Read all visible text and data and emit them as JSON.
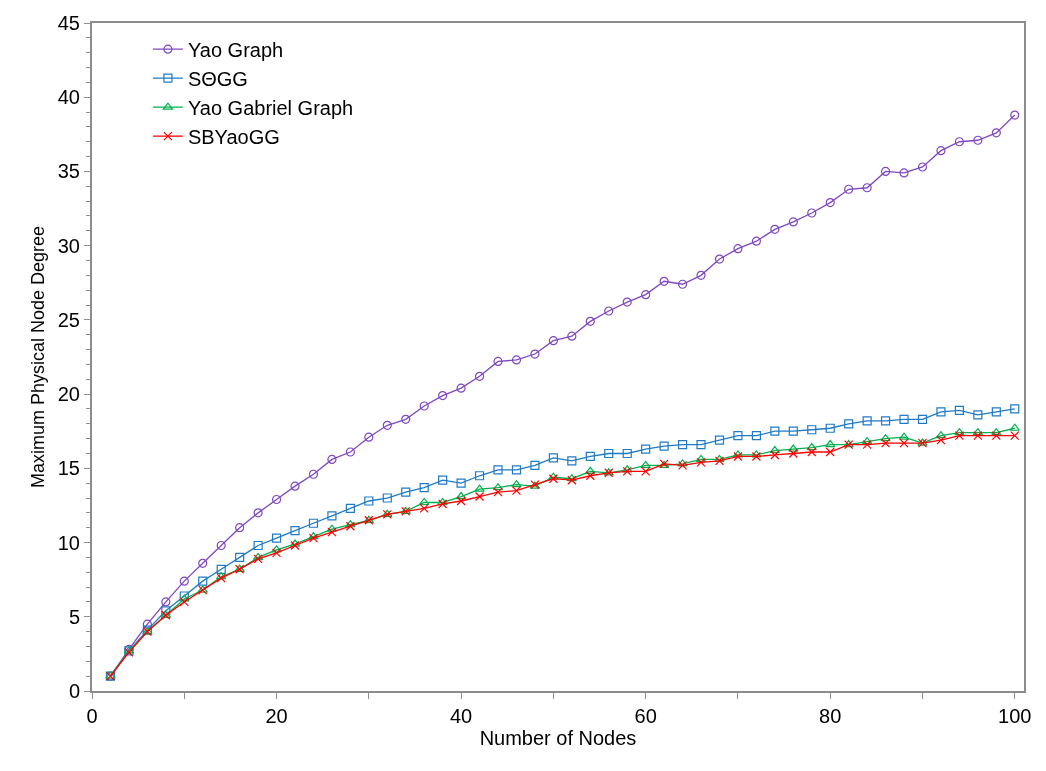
{
  "chart_data": {
    "type": "line",
    "xlabel": "Number of Nodes",
    "ylabel": "Maximum Physical Node Degree",
    "x": [
      2,
      4,
      6,
      8,
      10,
      12,
      14,
      16,
      18,
      20,
      22,
      24,
      26,
      28,
      30,
      32,
      34,
      36,
      38,
      40,
      42,
      44,
      46,
      48,
      50,
      52,
      54,
      56,
      58,
      60,
      62,
      64,
      66,
      68,
      70,
      72,
      74,
      76,
      78,
      80,
      82,
      84,
      86,
      88,
      90,
      92,
      94,
      96,
      98,
      100
    ],
    "xlim": [
      0,
      101
    ],
    "xticks": [
      0,
      20,
      40,
      60,
      80,
      100
    ],
    "ylim": [
      0,
      45
    ],
    "yticks": [
      0,
      5,
      10,
      15,
      20,
      25,
      30,
      35,
      40,
      45
    ],
    "legend": "top left",
    "line_style": "solid",
    "series": [
      {
        "name": "Yao Graph",
        "color": "#7f48c0",
        "marker": "circle",
        "values": [
          1.0,
          2.8,
          4.5,
          6.0,
          7.4,
          8.6,
          9.8,
          11.0,
          12.0,
          12.9,
          13.8,
          14.6,
          15.6,
          16.1,
          17.1,
          17.9,
          18.3,
          19.2,
          19.9,
          20.4,
          21.2,
          22.2,
          22.3,
          22.7,
          23.6,
          23.9,
          24.9,
          25.6,
          26.2,
          26.7,
          27.6,
          27.4,
          28.0,
          29.1,
          29.8,
          30.3,
          31.1,
          31.6,
          32.2,
          32.9,
          33.8,
          33.9,
          35.0,
          34.9,
          35.3,
          36.4,
          37.0,
          37.1,
          37.6,
          38.8
        ]
      },
      {
        "name": "SΘGG",
        "color": "#1f7bc8",
        "marker": "square",
        "values": [
          1.0,
          2.7,
          4.1,
          5.4,
          6.4,
          7.4,
          8.2,
          9.0,
          9.8,
          10.3,
          10.8,
          11.3,
          11.8,
          12.3,
          12.8,
          13.0,
          13.4,
          13.7,
          14.2,
          14.0,
          14.5,
          14.9,
          14.9,
          15.2,
          15.7,
          15.5,
          15.8,
          16.0,
          16.0,
          16.3,
          16.5,
          16.6,
          16.6,
          16.9,
          17.2,
          17.2,
          17.5,
          17.5,
          17.6,
          17.7,
          18.0,
          18.2,
          18.2,
          18.3,
          18.3,
          18.8,
          18.9,
          18.6,
          18.8,
          19.0
        ]
      },
      {
        "name": "Yao Gabriel Graph",
        "color": "#00b050",
        "marker": "triangle",
        "values": [
          1.0,
          2.7,
          4.0,
          5.1,
          6.2,
          6.8,
          7.7,
          8.2,
          9.0,
          9.5,
          9.9,
          10.4,
          10.9,
          11.2,
          11.5,
          11.9,
          12.1,
          12.7,
          12.7,
          13.1,
          13.6,
          13.7,
          13.9,
          13.8,
          14.4,
          14.3,
          14.8,
          14.7,
          14.9,
          15.2,
          15.2,
          15.3,
          15.6,
          15.6,
          15.9,
          15.9,
          16.2,
          16.3,
          16.4,
          16.6,
          16.6,
          16.8,
          17.0,
          17.1,
          16.7,
          17.2,
          17.4,
          17.4,
          17.4,
          17.7
        ]
      },
      {
        "name": "SBYaoGG",
        "color": "#ff0000",
        "marker": "cross",
        "values": [
          1.0,
          2.6,
          4.0,
          5.1,
          6.0,
          6.8,
          7.6,
          8.2,
          8.9,
          9.3,
          9.8,
          10.3,
          10.7,
          11.1,
          11.5,
          11.9,
          12.1,
          12.3,
          12.6,
          12.8,
          13.1,
          13.4,
          13.5,
          13.9,
          14.3,
          14.2,
          14.5,
          14.7,
          14.8,
          14.8,
          15.3,
          15.2,
          15.4,
          15.5,
          15.8,
          15.8,
          15.9,
          16.0,
          16.1,
          16.1,
          16.6,
          16.6,
          16.7,
          16.7,
          16.7,
          16.9,
          17.2,
          17.2,
          17.2,
          17.2
        ]
      }
    ]
  }
}
